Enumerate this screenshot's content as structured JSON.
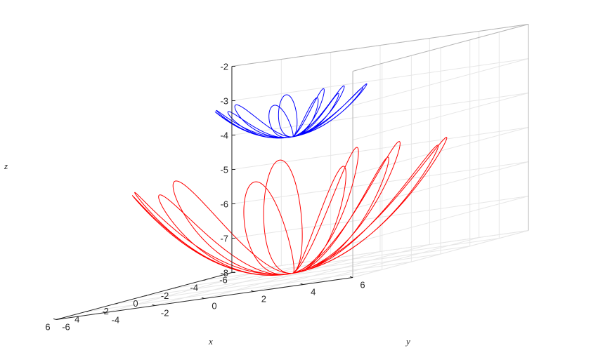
{
  "chart_data": {
    "type": "line",
    "title": "",
    "xlabel": "x",
    "ylabel": "y",
    "zlabel": "z",
    "xlim": [
      -6,
      6
    ],
    "ylim": [
      -6,
      6
    ],
    "zlim": [
      -8,
      -2
    ],
    "xticks": [
      "-6",
      "-4",
      "-2",
      "0",
      "2",
      "4",
      "6"
    ],
    "yticks": [
      "6",
      "4",
      "2",
      "0",
      "-2",
      "-4",
      "-6"
    ],
    "zticks": [
      "-2",
      "-3",
      "-4",
      "-5",
      "-6",
      "-7",
      "-8"
    ],
    "grid": true,
    "series": [
      {
        "color": "#0000ff",
        "bowl_radius": 2.7,
        "bottom_z": -3.98,
        "rim_z": -2.85,
        "lobes": 12
      },
      {
        "color": "#ff0000",
        "bowl_radius": 5.6,
        "bottom_z": -7.95,
        "rim_z": -4.85,
        "lobes": 12
      }
    ]
  }
}
